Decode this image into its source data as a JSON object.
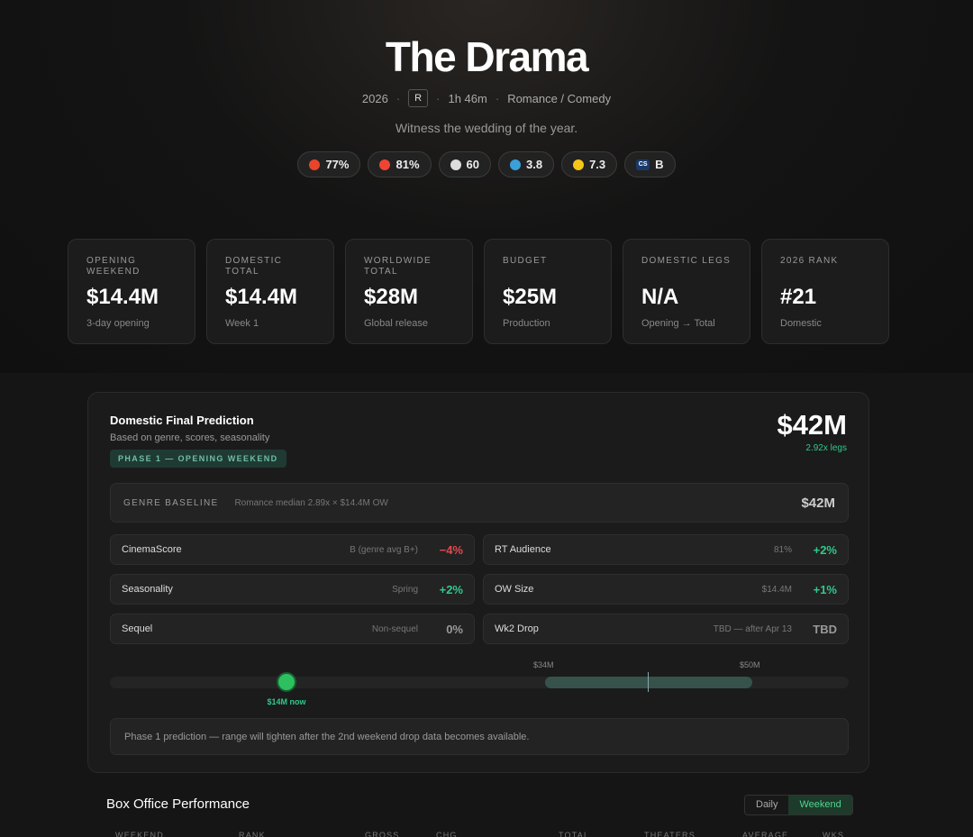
{
  "hero": {
    "title": "The Drama",
    "year": "2026",
    "rating": "R",
    "runtime": "1h 46m",
    "genre": "Romance / Comedy",
    "tagline": "Witness the wedding of the year.",
    "scores": [
      {
        "value": "77%"
      },
      {
        "value": "81%"
      },
      {
        "value": "60"
      },
      {
        "value": "3.8"
      },
      {
        "value": "7.3"
      },
      {
        "icon": "CS",
        "value": "B"
      }
    ]
  },
  "stats": [
    {
      "label": "OPENING WEEKEND",
      "value": "$14.4M",
      "sub": "3-day opening"
    },
    {
      "label": "DOMESTIC TOTAL",
      "value": "$14.4M",
      "sub": "Week 1"
    },
    {
      "label": "WORLDWIDE TOTAL",
      "value": "$28M",
      "sub": "Global release"
    },
    {
      "label": "BUDGET",
      "value": "$25M",
      "sub": "Production"
    },
    {
      "label": "DOMESTIC LEGS",
      "value": "N/A",
      "sub": "Opening → Total"
    },
    {
      "label": "2026 RANK",
      "value": "#21",
      "sub": "Domestic"
    }
  ],
  "prediction": {
    "title": "Domestic Final Prediction",
    "subtitle": "Based on genre, scores, seasonality",
    "phase": "PHASE 1 — OPENING WEEKEND",
    "value": "$42M",
    "legs": "2.92x legs",
    "baseline": {
      "label": "GENRE BASELINE",
      "detail": "Romance median 2.89x × $14.4M OW",
      "value": "$42M"
    },
    "factors": [
      {
        "name": "CinemaScore",
        "detail": "B (genre avg B+)",
        "impact": "−4%"
      },
      {
        "name": "RT Audience",
        "detail": "81%",
        "impact": "+2%"
      },
      {
        "name": "Seasonality",
        "detail": "Spring",
        "impact": "+2%"
      },
      {
        "name": "OW Size",
        "detail": "$14.4M",
        "impact": "+1%"
      },
      {
        "name": "Sequel",
        "detail": "Non-sequel",
        "impact": "0%"
      },
      {
        "name": "Wk2 Drop",
        "detail": "TBD — after Apr 13",
        "impact": "TBD"
      }
    ],
    "range": {
      "low": "$34M",
      "high": "$50M",
      "now": "$14M now"
    },
    "note": "Phase 1 prediction — range will tighten after the 2nd weekend drop data becomes available."
  },
  "box_office": {
    "title": "Box Office Performance",
    "tabs": [
      "Daily",
      "Weekend"
    ],
    "columns": [
      "WEEKEND",
      "RANK",
      "GROSS",
      "CHG",
      "TOTAL",
      "THEATERS",
      "AVERAGE",
      "WKS"
    ]
  }
}
